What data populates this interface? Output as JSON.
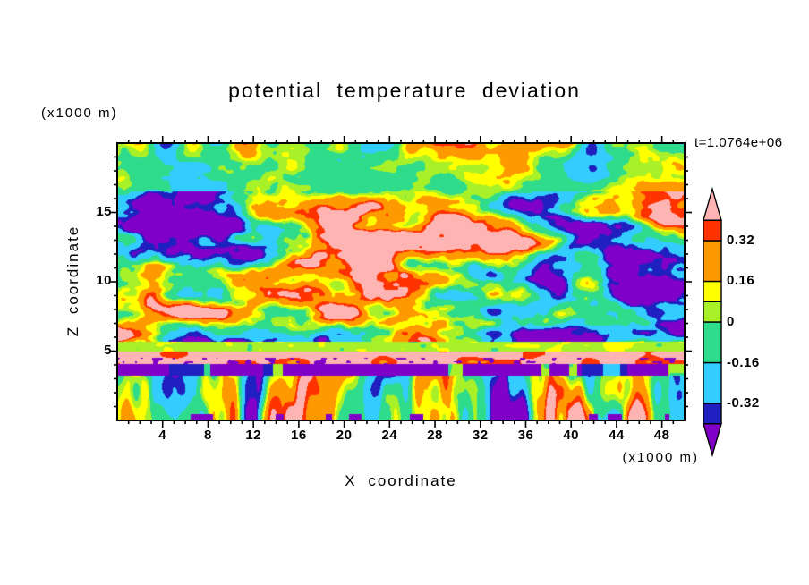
{
  "chart_data": {
    "type": "filled_contour",
    "title": "potential temperature deviation",
    "xlabel": "X coordinate",
    "ylabel": "Z coordinate",
    "x_unit_label": "(x1000 m)",
    "z_unit_label": "(x1000 m)",
    "time_annotation": "t=1.0764e+06",
    "x_range": [
      0,
      50
    ],
    "z_range": [
      0,
      20
    ],
    "x_major_ticks": [
      4,
      8,
      12,
      16,
      20,
      24,
      28,
      32,
      36,
      40,
      44,
      48
    ],
    "x_minor_step": 1,
    "z_major_ticks": [
      5,
      10,
      15
    ],
    "z_minor_step": 1,
    "contour_levels": [
      -0.4,
      -0.32,
      -0.16,
      0,
      0.08,
      0.16,
      0.32,
      0.4
    ],
    "colorbar_tick_labels": [
      "0.32",
      "0.16",
      "0",
      "-0.16",
      "-0.32"
    ],
    "colorbar_tick_values": [
      0.32,
      0.16,
      0,
      -0.16,
      -0.32
    ],
    "palette": [
      {
        "name": "purple",
        "hex": "#8000c8",
        "range": "below -0.40"
      },
      {
        "name": "navy-blue",
        "hex": "#2020c0",
        "range": "-0.40 to -0.32"
      },
      {
        "name": "cyan",
        "hex": "#33ccff",
        "range": "-0.32 to -0.16"
      },
      {
        "name": "spring-green",
        "hex": "#2fdc8c",
        "range": "-0.16 to 0"
      },
      {
        "name": "green-yellow",
        "hex": "#a8f028",
        "range": "0 to 0.08"
      },
      {
        "name": "yellow",
        "hex": "#ffff00",
        "range": "0.08 to 0.16"
      },
      {
        "name": "orange",
        "hex": "#ff9900",
        "range": "0.16 to 0.32"
      },
      {
        "name": "red",
        "hex": "#ff3300",
        "range": "0.32 to 0.40"
      },
      {
        "name": "pink",
        "hex": "#ffb4b4",
        "range": "above 0.40"
      }
    ],
    "legend_position": "right-colorbar",
    "grid": false,
    "field_structure": [
      {
        "z_range": [
          16,
          20
        ],
        "description": "weaker turbulence, mostly green/cyan, yellow-red patches touching top boundary"
      },
      {
        "z_range": [
          5.6,
          16
        ],
        "description": "strong turbulence, horizontally elongated eddies, large pink (>0.4) and purple (<-0.4) anomalies"
      },
      {
        "z_range": [
          4.9,
          5.6
        ],
        "description": "green-yellow horizontal stripe, weakly positive values"
      },
      {
        "z_range": [
          4.0,
          4.9
        ],
        "description": "nearly continuous pink band (strong positive) with purple speckles"
      },
      {
        "z_range": [
          3.2,
          4.0
        ],
        "description": "broken purple/navy dashed band (strong negative)"
      },
      {
        "z_range": [
          0,
          3.2
        ],
        "description": "vertically elongated plumes: green background with orange/red and cyan/blue plumes, purple dashes along bottom edge"
      }
    ],
    "noise_seed": 7
  }
}
